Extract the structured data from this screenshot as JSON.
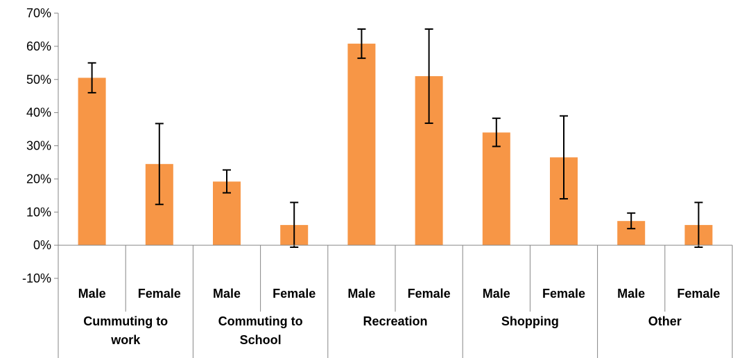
{
  "chart_data": {
    "type": "bar",
    "groups": [
      {
        "label_lines": [
          "Cummuting to",
          "work"
        ],
        "subcategories": [
          "Male",
          "Female"
        ]
      },
      {
        "label_lines": [
          "Commuting to",
          "School"
        ],
        "subcategories": [
          "Male",
          "Female"
        ]
      },
      {
        "label_lines": [
          "Recreation"
        ],
        "subcategories": [
          "Male",
          "Female"
        ]
      },
      {
        "label_lines": [
          "Shopping"
        ],
        "subcategories": [
          "Male",
          "Female"
        ]
      },
      {
        "label_lines": [
          "Other"
        ],
        "subcategories": [
          "Male",
          "Female"
        ]
      }
    ],
    "series": [
      {
        "values": [
          50.5,
          24.5,
          19.2,
          6.1,
          60.8,
          51.0,
          34.0,
          26.5,
          7.3,
          6.1
        ],
        "error_low": [
          46.0,
          12.3,
          15.8,
          -0.6,
          56.4,
          36.8,
          29.8,
          14.0,
          5.0,
          -0.6
        ],
        "error_high": [
          55.0,
          36.7,
          22.7,
          12.9,
          65.2,
          65.2,
          38.3,
          39.0,
          9.7,
          12.9
        ]
      }
    ],
    "ylim": [
      -10,
      70
    ],
    "yticks": [
      -10,
      0,
      10,
      20,
      30,
      40,
      50,
      60,
      70
    ],
    "ytick_labels": [
      "-10%",
      "0%",
      "10%",
      "20%",
      "30%",
      "40%",
      "50%",
      "60%",
      "70%"
    ],
    "bar_color": "#F79646",
    "error_bar_color": "#000000",
    "grid": false,
    "legend": "none"
  }
}
